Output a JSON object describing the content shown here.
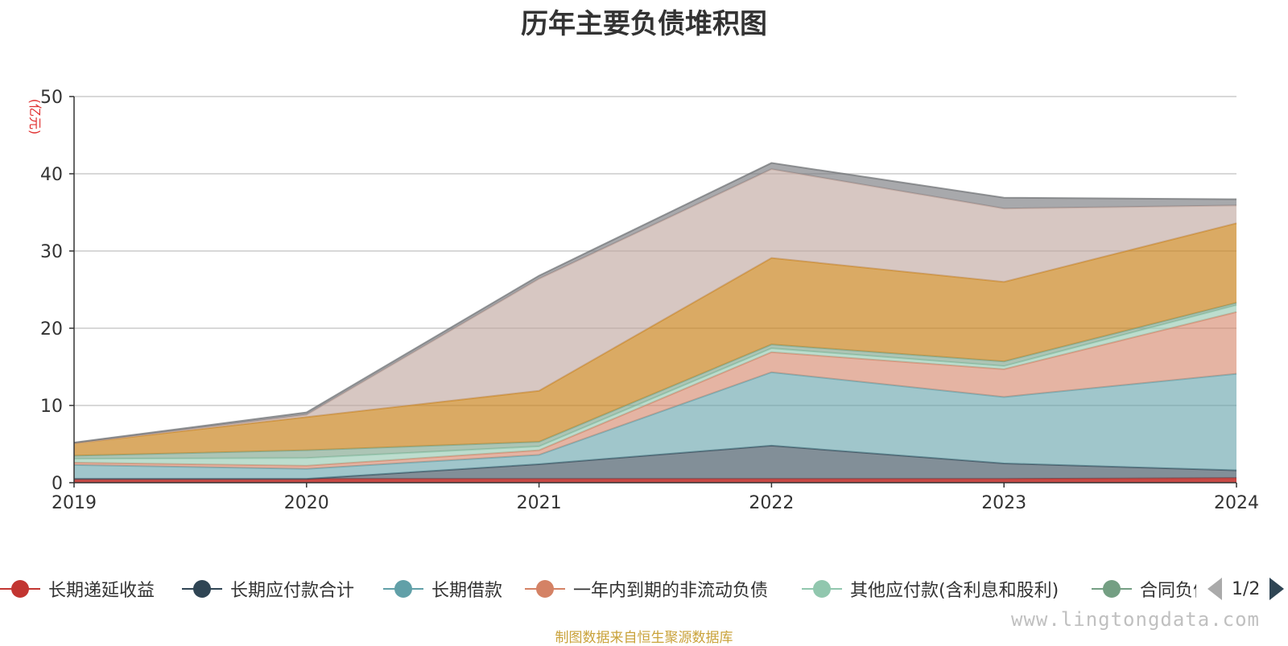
{
  "title": "历年主要负债堆积图",
  "unit_label": "(亿元)",
  "source_text": "制图数据来自恒生聚源数据库",
  "watermark": "www.lingtongdata.com",
  "pager": {
    "text": "1/2"
  },
  "legend": [
    {
      "name": "长期递延收益",
      "color": "#c23531"
    },
    {
      "name": "长期应付款合计",
      "color": "#2f4554"
    },
    {
      "name": "长期借款",
      "color": "#61a0a8"
    },
    {
      "name": "一年内到期的非流动负债",
      "color": "#d48265"
    },
    {
      "name": "其他应付款(含利息和股利)",
      "color": "#91c7ae"
    },
    {
      "name": "合同负债",
      "color": "#749f83"
    }
  ],
  "chart_data": {
    "type": "area",
    "stacked": true,
    "title": "历年主要负债堆积图",
    "ylabel": "(亿元)",
    "ylim": [
      0,
      50
    ],
    "yticks": [
      0,
      10,
      20,
      30,
      40,
      50
    ],
    "grid": true,
    "legend_position": "bottom",
    "categories": [
      "2019",
      "2020",
      "2021",
      "2022",
      "2023",
      "2024"
    ],
    "series": [
      {
        "name": "长期递延收益",
        "color": "#c23531",
        "values": [
          0.5,
          0.5,
          0.5,
          0.5,
          0.5,
          0.6
        ]
      },
      {
        "name": "长期应付款合计",
        "color": "#2f4554",
        "values": [
          0.0,
          0.0,
          1.9,
          4.3,
          2.0,
          1.0
        ]
      },
      {
        "name": "长期借款",
        "color": "#61a0a8",
        "values": [
          1.8,
          1.3,
          1.2,
          9.5,
          8.6,
          12.5
        ]
      },
      {
        "name": "一年内到期的非流动负债",
        "color": "#d48265",
        "values": [
          0.3,
          0.4,
          0.6,
          2.6,
          3.6,
          8.0
        ]
      },
      {
        "name": "其他应付款(含利息和股利)",
        "color": "#91c7ae",
        "values": [
          0.5,
          1.0,
          0.5,
          0.5,
          0.4,
          0.9
        ]
      },
      {
        "name": "合同负债",
        "color": "#749f83",
        "values": [
          0.4,
          1.0,
          0.6,
          0.5,
          0.6,
          0.3
        ]
      },
      {
        "color": "#ca8622",
        "values": [
          1.6,
          4.3,
          6.6,
          11.2,
          10.3,
          10.3
        ]
      },
      {
        "color": "#bda29a",
        "values": [
          0.0,
          0.3,
          14.5,
          11.5,
          9.5,
          2.3
        ]
      },
      {
        "color": "#6e7074",
        "values": [
          0.1,
          0.3,
          0.4,
          0.8,
          1.4,
          0.8
        ]
      }
    ]
  }
}
